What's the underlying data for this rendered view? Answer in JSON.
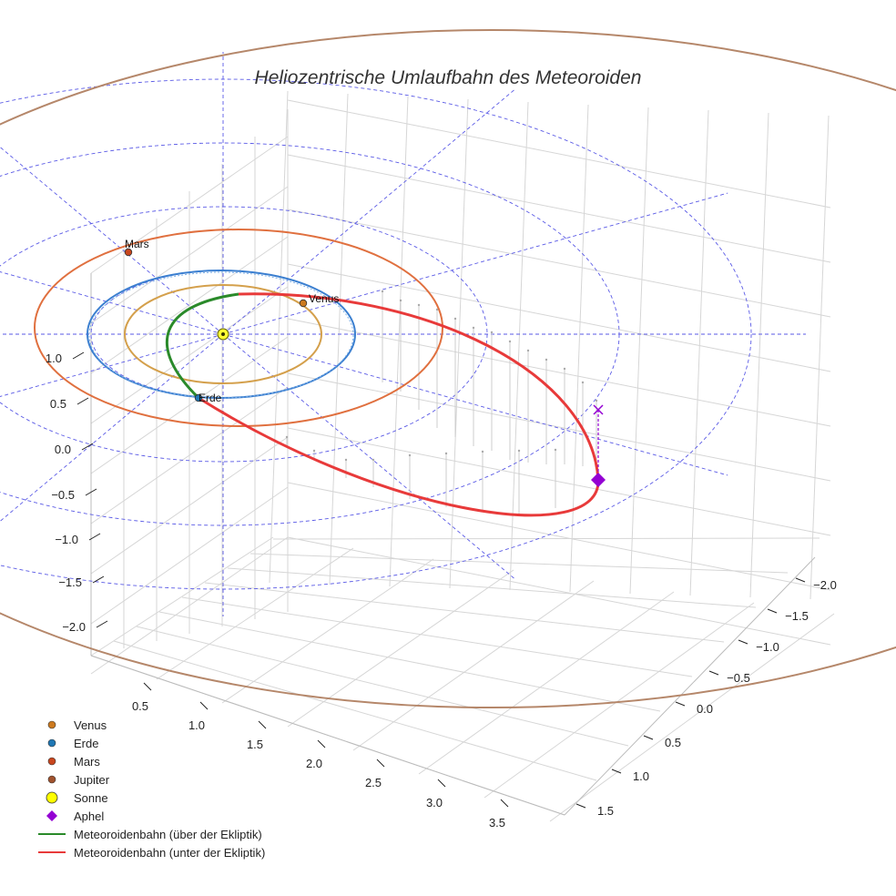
{
  "chart_data": {
    "type": "scatter",
    "title": "Heliozentrische Umlaufbahn des Meteoroiden",
    "axes": {
      "x": {
        "ticks": [
          "0.5",
          "1.0",
          "1.5",
          "2.0",
          "2.5",
          "3.0",
          "3.5"
        ]
      },
      "y": {
        "ticks": [
          "−2.0",
          "−1.5",
          "−1.0",
          "−0.5",
          "0.0",
          "0.5",
          "1.0",
          "1.5"
        ]
      },
      "z": {
        "ticks": [
          "1.0",
          "0.5",
          "0.0",
          "−0.5",
          "−1.0",
          "−1.5",
          "−2.0"
        ]
      }
    },
    "planets": [
      {
        "name": "Venus",
        "label": "Venus",
        "orbit_radius_au": 0.72,
        "color": "#d4a04c",
        "marker": "#cc7a1f"
      },
      {
        "name": "Erde",
        "label": "Erde",
        "orbit_radius_au": 1.0,
        "color": "#3b7fd0",
        "marker": "#1f77b4"
      },
      {
        "name": "Mars",
        "label": "Mars",
        "orbit_radius_au": 1.52,
        "color": "#e0703f",
        "marker": "#c8461e"
      },
      {
        "name": "Jupiter",
        "label": "",
        "orbit_radius_au": 5.2,
        "color": "#b5876a",
        "marker": "#8c5a3c"
      }
    ],
    "sun": {
      "name": "Sonne",
      "color": "#ffff33"
    },
    "aphel": {
      "name": "Aphel",
      "color": "#9400d3"
    },
    "meteoroid": {
      "above_color": "#2a8a2a",
      "below_color": "#e83a3a"
    },
    "legend": [
      {
        "key": "venus",
        "label": "Venus",
        "symbol": "dot",
        "color": "#cc7a1f"
      },
      {
        "key": "erde",
        "label": "Erde",
        "symbol": "dot",
        "color": "#1f77b4"
      },
      {
        "key": "mars",
        "label": "Mars",
        "symbol": "dot",
        "color": "#c8461e"
      },
      {
        "key": "jupiter",
        "label": "Jupiter",
        "symbol": "dot",
        "color": "#a0522d"
      },
      {
        "key": "sonne",
        "label": "Sonne",
        "symbol": "bigdot",
        "color": "#ffff00"
      },
      {
        "key": "aphel",
        "label": "Aphel",
        "symbol": "diamond",
        "color": "#9400d3"
      },
      {
        "key": "above",
        "label": "Meteoroidenbahn (über der Ekliptik)",
        "symbol": "line",
        "color": "#2a8a2a"
      },
      {
        "key": "below",
        "label": "Meteoroidenbahn (unter der Ekliptik)",
        "symbol": "line",
        "color": "#e83a3a"
      }
    ]
  }
}
